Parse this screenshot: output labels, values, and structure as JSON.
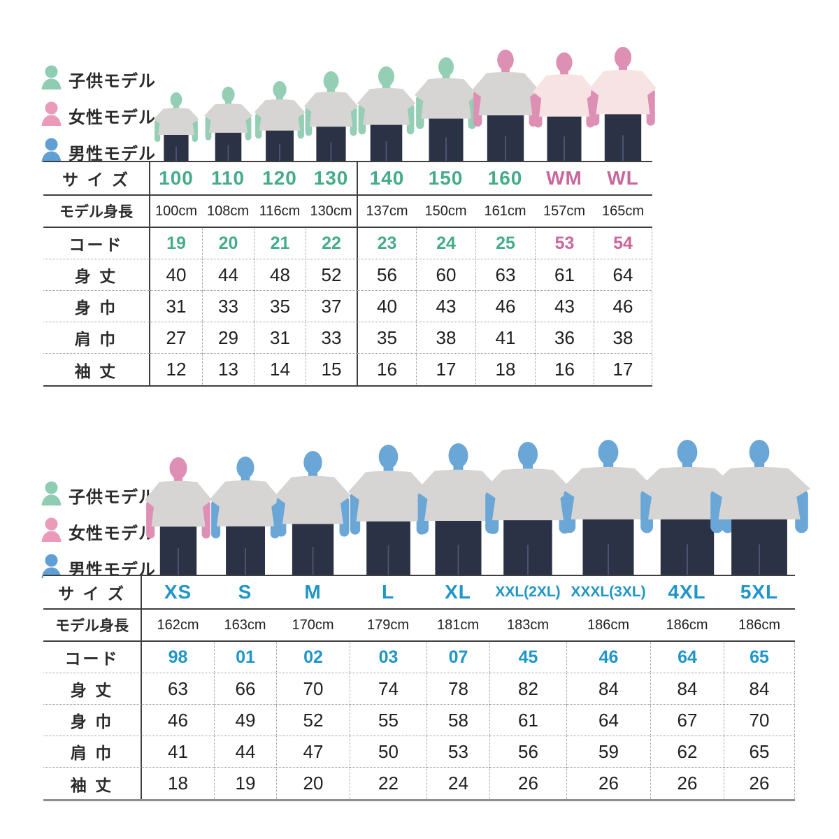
{
  "colors": {
    "kids_accent": "#45ab89",
    "women_accent": "#c9679c",
    "men_accent": "#2095c8",
    "text_dark": "#2b2b2b",
    "kid_skin": "#94ceb4",
    "woman_skin": "#dd90b4",
    "man_skin": "#6ba7d6",
    "shirt_grey": "#d6d5d3",
    "shirt_pink": "#f8e3e4",
    "jeans": "#2b3246",
    "legend_kid": "#8fcdb2",
    "legend_woman": "#eb9bb9",
    "legend_man": "#5f9fd4"
  },
  "legend_items": [
    {
      "label": "子供モデル",
      "model": "kid"
    },
    {
      "label": "女性モデル",
      "model": "woman"
    },
    {
      "label": "男性モデル",
      "model": "man"
    }
  ],
  "row_labels": {
    "size": "サ イ ズ",
    "model_height": "モデル身長",
    "code": "コード",
    "body_length": "身 丈",
    "body_width": "身 巾",
    "shoulder_width": "肩 巾",
    "sleeve_length": "袖 丈"
  },
  "tables": [
    {
      "name": "kids-women-sizes",
      "columns": [
        {
          "size": "100",
          "height": "100cm",
          "code": "19",
          "body_length": "40",
          "body_width": "31",
          "shoulder": "27",
          "sleeve": "12",
          "accent": "kids",
          "model": "kid",
          "shirt": "grey"
        },
        {
          "size": "110",
          "height": "108cm",
          "code": "20",
          "body_length": "44",
          "body_width": "33",
          "shoulder": "29",
          "sleeve": "13",
          "accent": "kids",
          "model": "kid",
          "shirt": "grey"
        },
        {
          "size": "120",
          "height": "116cm",
          "code": "21",
          "body_length": "48",
          "body_width": "35",
          "shoulder": "31",
          "sleeve": "14",
          "accent": "kids",
          "model": "kid",
          "shirt": "grey"
        },
        {
          "size": "130",
          "height": "130cm",
          "code": "22",
          "body_length": "52",
          "body_width": "37",
          "shoulder": "33",
          "sleeve": "15",
          "accent": "kids",
          "model": "kid",
          "shirt": "grey"
        },
        {
          "size": "140",
          "height": "137cm",
          "code": "23",
          "body_length": "56",
          "body_width": "40",
          "shoulder": "35",
          "sleeve": "16",
          "accent": "kids",
          "model": "kid",
          "shirt": "grey"
        },
        {
          "size": "150",
          "height": "150cm",
          "code": "24",
          "body_length": "60",
          "body_width": "43",
          "shoulder": "38",
          "sleeve": "17",
          "accent": "kids",
          "model": "kid",
          "shirt": "grey"
        },
        {
          "size": "160",
          "height": "161cm",
          "code": "25",
          "body_length": "63",
          "body_width": "46",
          "shoulder": "41",
          "sleeve": "18",
          "accent": "kids",
          "model": "woman",
          "shirt": "grey"
        },
        {
          "size": "WM",
          "height": "157cm",
          "code": "53",
          "body_length": "61",
          "body_width": "43",
          "shoulder": "36",
          "sleeve": "16",
          "accent": "women",
          "model": "woman",
          "shirt": "pink"
        },
        {
          "size": "WL",
          "height": "165cm",
          "code": "54",
          "body_length": "64",
          "body_width": "46",
          "shoulder": "38",
          "sleeve": "17",
          "accent": "women",
          "model": "woman",
          "shirt": "pink"
        }
      ]
    },
    {
      "name": "adult-sizes",
      "columns": [
        {
          "size": "XS",
          "height": "162cm",
          "code": "98",
          "body_length": "63",
          "body_width": "46",
          "shoulder": "41",
          "sleeve": "18",
          "accent": "men",
          "model": "woman",
          "shirt": "grey"
        },
        {
          "size": "S",
          "height": "163cm",
          "code": "01",
          "body_length": "66",
          "body_width": "49",
          "shoulder": "44",
          "sleeve": "19",
          "accent": "men",
          "model": "man",
          "shirt": "grey"
        },
        {
          "size": "M",
          "height": "170cm",
          "code": "02",
          "body_length": "70",
          "body_width": "52",
          "shoulder": "47",
          "sleeve": "20",
          "accent": "men",
          "model": "man",
          "shirt": "grey"
        },
        {
          "size": "L",
          "height": "179cm",
          "code": "03",
          "body_length": "74",
          "body_width": "55",
          "shoulder": "50",
          "sleeve": "22",
          "accent": "men",
          "model": "man",
          "shirt": "grey"
        },
        {
          "size": "XL",
          "height": "181cm",
          "code": "07",
          "body_length": "78",
          "body_width": "58",
          "shoulder": "53",
          "sleeve": "24",
          "accent": "men",
          "model": "man",
          "shirt": "grey"
        },
        {
          "size": "XXL(2XL)",
          "height": "183cm",
          "code": "45",
          "body_length": "82",
          "body_width": "61",
          "shoulder": "56",
          "sleeve": "26",
          "accent": "men",
          "model": "man",
          "shirt": "grey"
        },
        {
          "size": "XXXL(3XL)",
          "height": "186cm",
          "code": "46",
          "body_length": "84",
          "body_width": "64",
          "shoulder": "59",
          "sleeve": "26",
          "accent": "men",
          "model": "man",
          "shirt": "grey"
        },
        {
          "size": "4XL",
          "height": "186cm",
          "code": "64",
          "body_length": "84",
          "body_width": "67",
          "shoulder": "62",
          "sleeve": "26",
          "accent": "men",
          "model": "man",
          "shirt": "grey"
        },
        {
          "size": "5XL",
          "height": "186cm",
          "code": "65",
          "body_length": "84",
          "body_width": "70",
          "shoulder": "65",
          "sleeve": "26",
          "accent": "men",
          "model": "man",
          "shirt": "grey"
        }
      ]
    }
  ]
}
